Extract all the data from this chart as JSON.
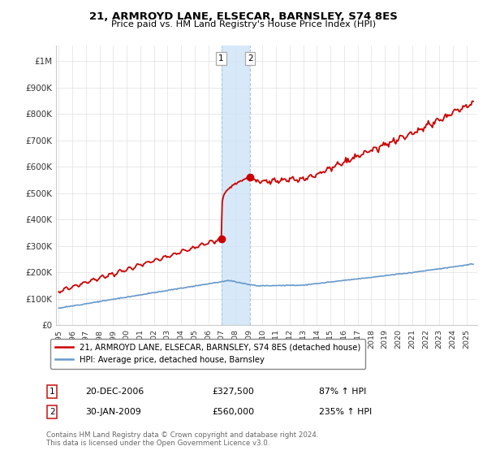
{
  "title": "21, ARMROYD LANE, ELSECAR, BARNSLEY, S74 8ES",
  "subtitle": "Price paid vs. HM Land Registry's House Price Index (HPI)",
  "property_line_color": "#cc0000",
  "hpi_line_color": "#6699cc",
  "shaded_region_color": "#d0e4f7",
  "transaction1_x": 2006.96,
  "transaction1_y": 327500,
  "transaction2_x": 2009.08,
  "transaction2_y": 560000,
  "yticks": [
    0,
    100000,
    200000,
    300000,
    400000,
    500000,
    600000,
    700000,
    800000,
    900000,
    1000000
  ],
  "ytick_labels": [
    "£0",
    "£100K",
    "£200K",
    "£300K",
    "£400K",
    "£500K",
    "£600K",
    "£700K",
    "£800K",
    "£900K",
    "£1M"
  ],
  "legend_property": "21, ARMROYD LANE, ELSECAR, BARNSLEY, S74 8ES (detached house)",
  "legend_hpi": "HPI: Average price, detached house, Barnsley",
  "note1_label": "1",
  "note1_date": "20-DEC-2006",
  "note1_price": "£327,500",
  "note1_hpi": "87% ↑ HPI",
  "note2_label": "2",
  "note2_date": "30-JAN-2009",
  "note2_price": "£560,000",
  "note2_hpi": "235% ↑ HPI",
  "footer": "Contains HM Land Registry data © Crown copyright and database right 2024.\nThis data is licensed under the Open Government Licence v3.0.",
  "xmin": 1994.8,
  "xmax": 2025.8,
  "ymin": 0,
  "ymax": 1060000
}
